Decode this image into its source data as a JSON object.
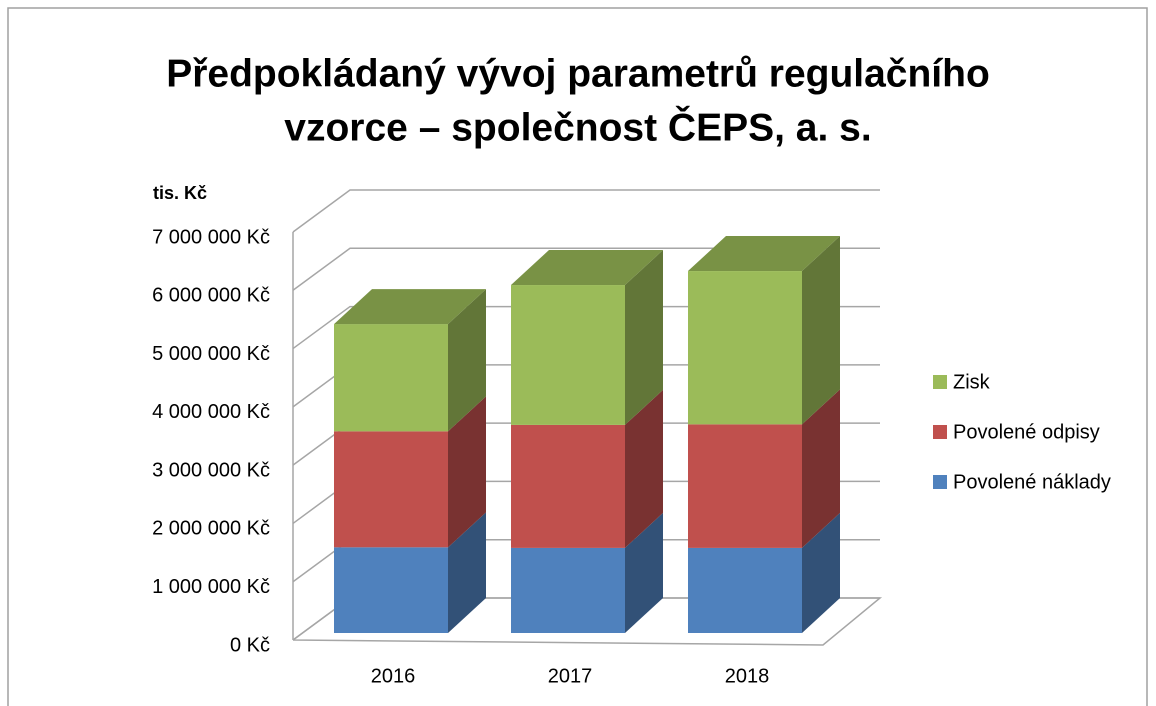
{
  "chart_data": {
    "type": "bar3d_stacked",
    "title": [
      "Předpokládaný vývoj parametrů regulačního",
      "vzorce – společnost ČEPS, a. s."
    ],
    "y_label": "tis. Kč",
    "categories": [
      "2016",
      "2017",
      "2018"
    ],
    "series": [
      {
        "name": "Povolené náklady",
        "color": "#4f81bd",
        "values": [
          1470000,
          1460000,
          1460000
        ]
      },
      {
        "name": "Povolené odpisy",
        "color": "#c0504d",
        "values": [
          1990000,
          2110000,
          2120000
        ]
      },
      {
        "name": "Zisk",
        "color": "#9bbb59",
        "values": [
          1840000,
          2400000,
          2630000
        ]
      }
    ],
    "ylim": [
      0,
      7000000
    ],
    "yticks": [
      {
        "value": 0,
        "label": "0 Kč"
      },
      {
        "value": 1000000,
        "label": "1 000 000 Kč"
      },
      {
        "value": 2000000,
        "label": "2 000 000 Kč"
      },
      {
        "value": 3000000,
        "label": "3 000 000 Kč"
      },
      {
        "value": 4000000,
        "label": "4 000 000 Kč"
      },
      {
        "value": 5000000,
        "label": "5 000 000 Kč"
      },
      {
        "value": 6000000,
        "label": "6 000 000 Kč"
      },
      {
        "value": 7000000,
        "label": "7 000 000 Kč"
      }
    ],
    "grid": true,
    "legend": "right"
  }
}
